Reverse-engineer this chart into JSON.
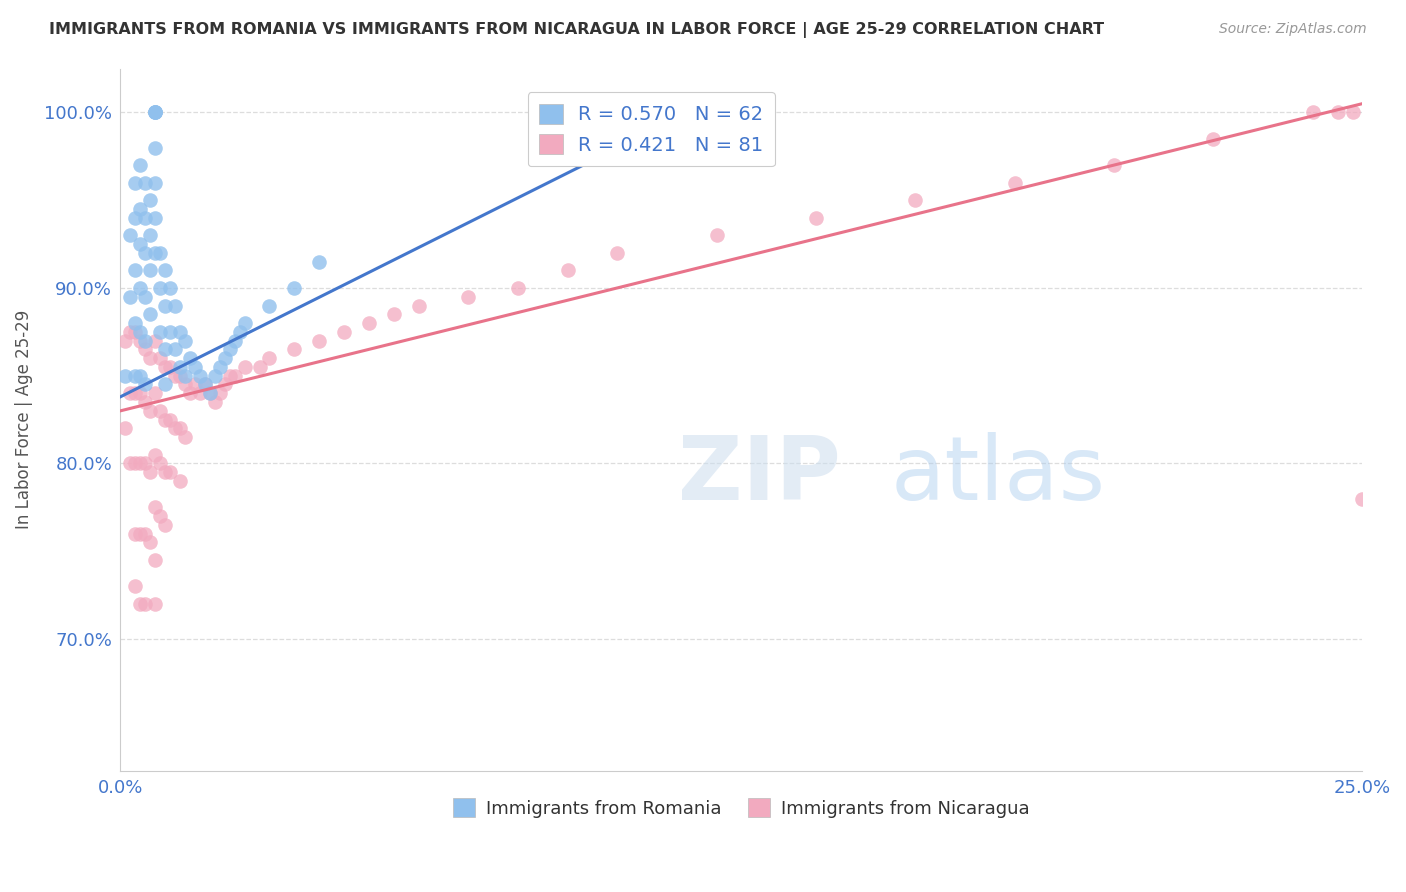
{
  "title": "IMMIGRANTS FROM ROMANIA VS IMMIGRANTS FROM NICARAGUA IN LABOR FORCE | AGE 25-29 CORRELATION CHART",
  "source": "Source: ZipAtlas.com",
  "ylabel": "In Labor Force | Age 25-29",
  "xlim": [
    0.0,
    0.25
  ],
  "ylim": [
    0.625,
    1.025
  ],
  "x_ticks": [
    0.0,
    0.025,
    0.05,
    0.075,
    0.1,
    0.125,
    0.15,
    0.175,
    0.2,
    0.225,
    0.25
  ],
  "y_ticks": [
    0.7,
    0.8,
    0.9,
    1.0
  ],
  "y_tick_labels": [
    "70.0%",
    "80.0%",
    "90.0%",
    "100.0%"
  ],
  "romania_color": "#90C0ED",
  "nicaragua_color": "#F2AABF",
  "romania_line_color": "#4477CC",
  "nicaragua_line_color": "#E8738A",
  "R_romania": 0.57,
  "N_romania": 62,
  "R_nicaragua": 0.421,
  "N_nicaragua": 81,
  "legend_label_romania": "Immigrants from Romania",
  "legend_label_nicaragua": "Immigrants from Nicaragua",
  "watermark_zip": "ZIP",
  "watermark_atlas": "atlas",
  "romania_x": [
    0.001,
    0.002,
    0.002,
    0.003,
    0.003,
    0.003,
    0.003,
    0.003,
    0.004,
    0.004,
    0.004,
    0.004,
    0.004,
    0.004,
    0.005,
    0.005,
    0.005,
    0.005,
    0.005,
    0.005,
    0.006,
    0.006,
    0.006,
    0.006,
    0.007,
    0.007,
    0.007,
    0.007,
    0.007,
    0.007,
    0.007,
    0.007,
    0.008,
    0.008,
    0.008,
    0.009,
    0.009,
    0.009,
    0.009,
    0.01,
    0.01,
    0.011,
    0.011,
    0.012,
    0.012,
    0.013,
    0.013,
    0.014,
    0.015,
    0.016,
    0.017,
    0.018,
    0.019,
    0.02,
    0.021,
    0.022,
    0.023,
    0.024,
    0.025,
    0.03,
    0.035,
    0.04
  ],
  "romania_y": [
    0.85,
    0.93,
    0.895,
    0.96,
    0.94,
    0.91,
    0.88,
    0.85,
    0.97,
    0.945,
    0.925,
    0.9,
    0.875,
    0.85,
    0.96,
    0.94,
    0.92,
    0.895,
    0.87,
    0.845,
    0.95,
    0.93,
    0.91,
    0.885,
    1.0,
    1.0,
    1.0,
    1.0,
    0.98,
    0.96,
    0.94,
    0.92,
    0.92,
    0.9,
    0.875,
    0.91,
    0.89,
    0.865,
    0.845,
    0.9,
    0.875,
    0.89,
    0.865,
    0.875,
    0.855,
    0.87,
    0.85,
    0.86,
    0.855,
    0.85,
    0.845,
    0.84,
    0.85,
    0.855,
    0.86,
    0.865,
    0.87,
    0.875,
    0.88,
    0.89,
    0.9,
    0.915
  ],
  "nicaragua_x": [
    0.001,
    0.001,
    0.002,
    0.002,
    0.002,
    0.003,
    0.003,
    0.003,
    0.003,
    0.003,
    0.004,
    0.004,
    0.004,
    0.004,
    0.004,
    0.005,
    0.005,
    0.005,
    0.005,
    0.005,
    0.006,
    0.006,
    0.006,
    0.006,
    0.007,
    0.007,
    0.007,
    0.007,
    0.007,
    0.007,
    0.008,
    0.008,
    0.008,
    0.008,
    0.009,
    0.009,
    0.009,
    0.009,
    0.01,
    0.01,
    0.01,
    0.011,
    0.011,
    0.012,
    0.012,
    0.012,
    0.013,
    0.013,
    0.014,
    0.015,
    0.016,
    0.017,
    0.018,
    0.019,
    0.02,
    0.021,
    0.022,
    0.023,
    0.025,
    0.028,
    0.03,
    0.035,
    0.04,
    0.045,
    0.05,
    0.055,
    0.06,
    0.07,
    0.08,
    0.09,
    0.1,
    0.12,
    0.14,
    0.16,
    0.18,
    0.2,
    0.22,
    0.24,
    0.245,
    0.248,
    0.25
  ],
  "nicaragua_y": [
    0.87,
    0.82,
    0.875,
    0.84,
    0.8,
    0.875,
    0.84,
    0.8,
    0.76,
    0.73,
    0.87,
    0.84,
    0.8,
    0.76,
    0.72,
    0.865,
    0.835,
    0.8,
    0.76,
    0.72,
    0.86,
    0.83,
    0.795,
    0.755,
    0.87,
    0.84,
    0.805,
    0.775,
    0.745,
    0.72,
    0.86,
    0.83,
    0.8,
    0.77,
    0.855,
    0.825,
    0.795,
    0.765,
    0.855,
    0.825,
    0.795,
    0.85,
    0.82,
    0.85,
    0.82,
    0.79,
    0.845,
    0.815,
    0.84,
    0.845,
    0.84,
    0.845,
    0.84,
    0.835,
    0.84,
    0.845,
    0.85,
    0.85,
    0.855,
    0.855,
    0.86,
    0.865,
    0.87,
    0.875,
    0.88,
    0.885,
    0.89,
    0.895,
    0.9,
    0.91,
    0.92,
    0.93,
    0.94,
    0.95,
    0.96,
    0.97,
    0.985,
    1.0,
    1.0,
    1.0,
    0.78
  ],
  "romania_line_x": [
    0.0,
    0.12
  ],
  "romania_line_y": [
    0.838,
    1.008
  ],
  "nicaragua_line_x": [
    0.0,
    0.25
  ],
  "nicaragua_line_y": [
    0.83,
    1.005
  ]
}
